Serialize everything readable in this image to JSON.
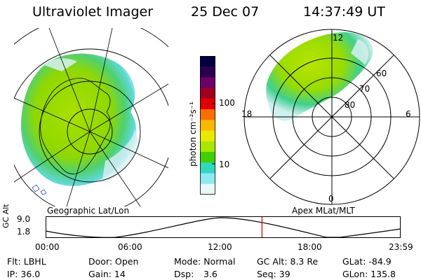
{
  "header": {
    "instrument": "Ultraviolet Imager",
    "date": "25 Dec 07",
    "time": "14:37:49 UT"
  },
  "left_panel": {
    "caption": "Geographic Lat/Lon"
  },
  "right_panel": {
    "caption": "Apex MLat/MLT",
    "mlt_labels": [
      "12",
      "18",
      "6",
      "0"
    ],
    "mlat_labels": [
      "60",
      "70",
      "80"
    ]
  },
  "colorbar": {
    "unit_label": "photon cm⁻²s⁻¹",
    "tick_labels": [
      "100",
      "10"
    ],
    "colors": [
      "#000040",
      "#2a0050",
      "#6a0068",
      "#a00020",
      "#e00000",
      "#f87000",
      "#f8b800",
      "#e8e800",
      "#a8e800",
      "#40d000",
      "#30d8c0",
      "#90e8f0",
      "#e8f8f8"
    ]
  },
  "altitude_plot": {
    "ylabel": "GC Alt",
    "y_ticks": [
      "9.0",
      "1.8"
    ],
    "x_ticks": [
      "00:00",
      "06:00",
      "12:00",
      "18:00",
      "23:59"
    ],
    "current_time_marker_hour": 14.63,
    "marker_color": "#c00000"
  },
  "footer": {
    "filter": "Flt: LBHL",
    "ip": "IP: 36.0",
    "door": "Door: Open",
    "gain": "Gain: 14",
    "mode": "Mode: Normal",
    "dsp_label": "Dsp:",
    "dsp_value": "3.6",
    "gc_alt": "GC Alt: 8.3 Re",
    "seq": "Seq: 39",
    "glat": "GLat: -84.9",
    "glon": "GLon: 135.8"
  }
}
